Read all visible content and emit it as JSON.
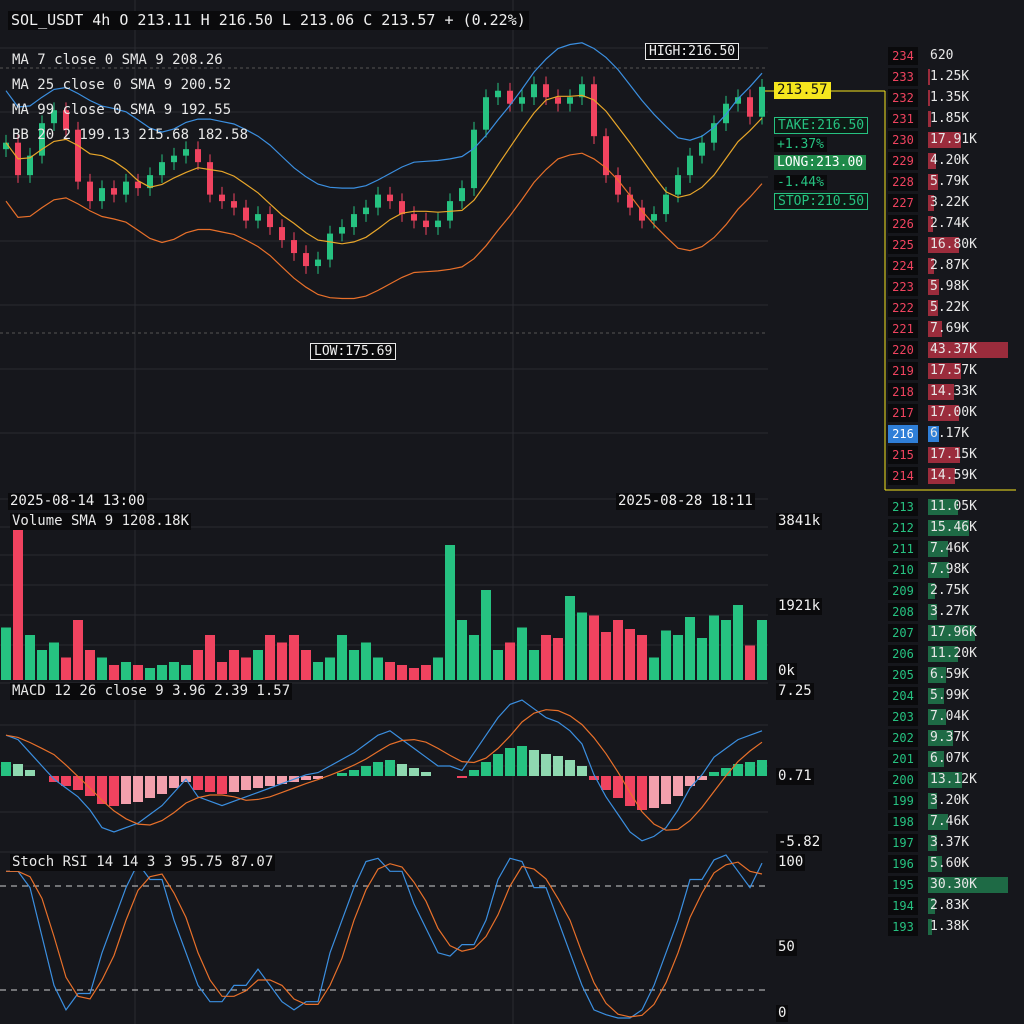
{
  "header": {
    "symbol": "SOL_USDT",
    "interval": "4h",
    "ohlc": "O 213.11 H 216.50 L 213.06 C 213.57 + (0.22%)"
  },
  "indicators": {
    "ma7": "MA 7 close 0 SMA 9 208.26",
    "ma25": "MA 25 close 0 SMA 9 200.52",
    "ma99": "MA 99 close 0 SMA 9 192.55",
    "bb": "BB 20 2 199.13 215.68 182.58"
  },
  "markers": {
    "high": "HIGH:216.50",
    "low": "LOW:175.69",
    "last_price": "213.57"
  },
  "position": {
    "take": "TAKE:216.50",
    "take_pct": "+1.37%",
    "long": "LONG:213.00",
    "stop_pct": "-1.44%",
    "stop": "STOP:210.50"
  },
  "time_axis": {
    "left": "2025-08-14 13:00",
    "right": "2025-08-28 18:11"
  },
  "volume": {
    "label": "Volume SMA 9 1208.18K",
    "axis_top": "3841k",
    "axis_mid": "1921k",
    "axis_bottom": "0k"
  },
  "macd": {
    "label": "MACD 12 26 close 9 3.96 2.39 1.57",
    "axis_top": "7.25",
    "axis_mid": "0.71",
    "axis_bottom": "-5.82"
  },
  "stoch": {
    "label": "Stoch RSI 14 14 3 3 95.75 87.07",
    "axis_top": "100",
    "axis_mid": "50",
    "axis_bottom": "0"
  },
  "colors": {
    "up": "#26c281",
    "down": "#f0435f",
    "ma7": "#3b8fe0",
    "ma25": "#e8a62a",
    "ma99": "#e8702a",
    "bb": "#3b8fe0",
    "last_price_bg": "#f5e61e",
    "long_bg": "#1f8a4a",
    "current_price_bg": "#2f7fd8"
  },
  "orderbook": {
    "asks": [
      {
        "price": "234",
        "volume": "620",
        "fill": 0.0
      },
      {
        "price": "233",
        "volume": "1.25K",
        "fill": 0.03
      },
      {
        "price": "232",
        "volume": "1.35K",
        "fill": 0.03
      },
      {
        "price": "231",
        "volume": "1.85K",
        "fill": 0.04
      },
      {
        "price": "230",
        "volume": "17.91K",
        "fill": 0.41
      },
      {
        "price": "229",
        "volume": "4.20K",
        "fill": 0.1
      },
      {
        "price": "228",
        "volume": "5.79K",
        "fill": 0.13
      },
      {
        "price": "227",
        "volume": "3.22K",
        "fill": 0.07
      },
      {
        "price": "226",
        "volume": "2.74K",
        "fill": 0.06
      },
      {
        "price": "225",
        "volume": "16.80K",
        "fill": 0.39
      },
      {
        "price": "224",
        "volume": "2.87K",
        "fill": 0.07
      },
      {
        "price": "223",
        "volume": "5.98K",
        "fill": 0.14
      },
      {
        "price": "222",
        "volume": "5.22K",
        "fill": 0.12
      },
      {
        "price": "221",
        "volume": "7.69K",
        "fill": 0.18
      },
      {
        "price": "220",
        "volume": "43.37K",
        "fill": 1.0
      },
      {
        "price": "219",
        "volume": "17.57K",
        "fill": 0.41
      },
      {
        "price": "218",
        "volume": "14.33K",
        "fill": 0.33
      },
      {
        "price": "217",
        "volume": "17.00K",
        "fill": 0.39
      }
    ],
    "current": {
      "price": "216",
      "volume": "6.17K",
      "fill": 0.14
    },
    "asks_low": [
      {
        "price": "215",
        "volume": "17.15K",
        "fill": 0.4
      },
      {
        "price": "214",
        "volume": "14.59K",
        "fill": 0.34
      }
    ],
    "bids": [
      {
        "price": "213",
        "volume": "11.05K",
        "fill": 0.37
      },
      {
        "price": "212",
        "volume": "15.46K",
        "fill": 0.51
      },
      {
        "price": "211",
        "volume": "7.46K",
        "fill": 0.25
      },
      {
        "price": "210",
        "volume": "7.98K",
        "fill": 0.26
      },
      {
        "price": "209",
        "volume": "2.75K",
        "fill": 0.09
      },
      {
        "price": "208",
        "volume": "3.27K",
        "fill": 0.11
      },
      {
        "price": "207",
        "volume": "17.96K",
        "fill": 0.59
      },
      {
        "price": "206",
        "volume": "11.20K",
        "fill": 0.37
      },
      {
        "price": "205",
        "volume": "6.59K",
        "fill": 0.22
      },
      {
        "price": "204",
        "volume": "5.99K",
        "fill": 0.2
      },
      {
        "price": "203",
        "volume": "7.04K",
        "fill": 0.23
      },
      {
        "price": "202",
        "volume": "9.37K",
        "fill": 0.31
      },
      {
        "price": "201",
        "volume": "6.07K",
        "fill": 0.2
      },
      {
        "price": "200",
        "volume": "13.12K",
        "fill": 0.43
      },
      {
        "price": "199",
        "volume": "3.20K",
        "fill": 0.11
      },
      {
        "price": "198",
        "volume": "7.46K",
        "fill": 0.25
      },
      {
        "price": "197",
        "volume": "3.37K",
        "fill": 0.11
      },
      {
        "price": "196",
        "volume": "5.60K",
        "fill": 0.18
      },
      {
        "price": "195",
        "volume": "30.30K",
        "fill": 1.0
      },
      {
        "price": "194",
        "volume": "2.83K",
        "fill": 0.09
      },
      {
        "price": "193",
        "volume": "1.38K",
        "fill": 0.05
      }
    ]
  }
}
